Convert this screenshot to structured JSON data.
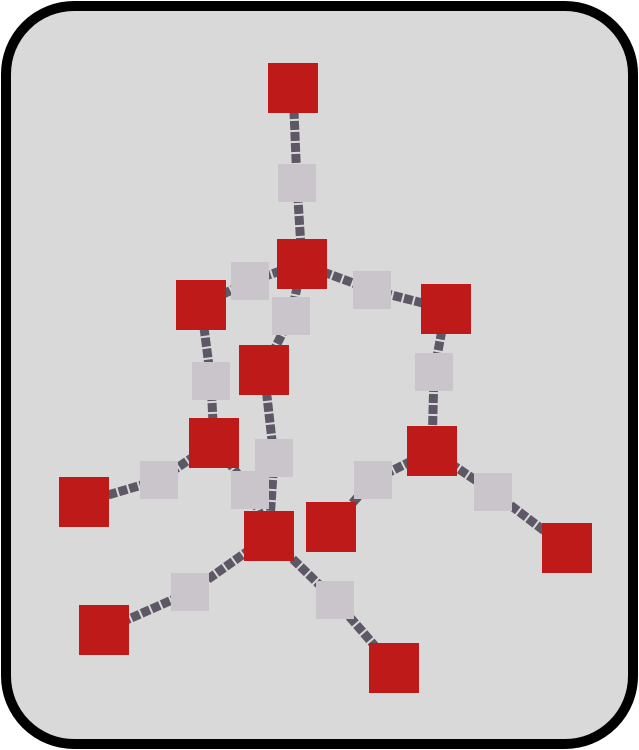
{
  "colors": {
    "background": "#d9d9d9",
    "border": "#000000",
    "node_primary": "#be1a1a",
    "node_secondary": "#c9c5ca",
    "edge": "#5e5866"
  },
  "graph": {
    "primary_nodes": [
      "n1",
      "n2",
      "n3",
      "n4",
      "n5",
      "n6",
      "n7",
      "n8",
      "n9",
      "n10",
      "n11",
      "n12",
      "n13"
    ],
    "secondary_nodes": [
      "s1",
      "s2",
      "s3",
      "s4",
      "s5",
      "s6",
      "s7",
      "s8",
      "s9",
      "s10",
      "s11",
      "s12",
      "s13",
      "s14",
      "s15"
    ],
    "edges": [
      [
        "n1",
        "s1"
      ],
      [
        "s1",
        "n2"
      ],
      [
        "n2",
        "s2"
      ],
      [
        "s2",
        "n3"
      ],
      [
        "n2",
        "s3"
      ],
      [
        "s3",
        "n4"
      ],
      [
        "n2",
        "s4"
      ],
      [
        "s4",
        "n5"
      ],
      [
        "n3",
        "s5"
      ],
      [
        "s5",
        "n6"
      ],
      [
        "n4",
        "s6"
      ],
      [
        "s6",
        "n7"
      ],
      [
        "n5",
        "s7"
      ],
      [
        "s7",
        "n8"
      ],
      [
        "n6",
        "s8"
      ],
      [
        "s8",
        "n9"
      ],
      [
        "n6",
        "s9"
      ],
      [
        "s9",
        "n10"
      ],
      [
        "n7",
        "s10"
      ],
      [
        "s10",
        "n10"
      ],
      [
        "n8",
        "s11"
      ],
      [
        "s11",
        "n11"
      ],
      [
        "n8",
        "s12"
      ],
      [
        "s12",
        "n12"
      ],
      [
        "n10",
        "s13"
      ],
      [
        "s13",
        "n13"
      ],
      [
        "n10",
        "s14"
      ],
      [
        "s14",
        "n14"
      ],
      [
        "n11",
        "s15"
      ]
    ]
  }
}
